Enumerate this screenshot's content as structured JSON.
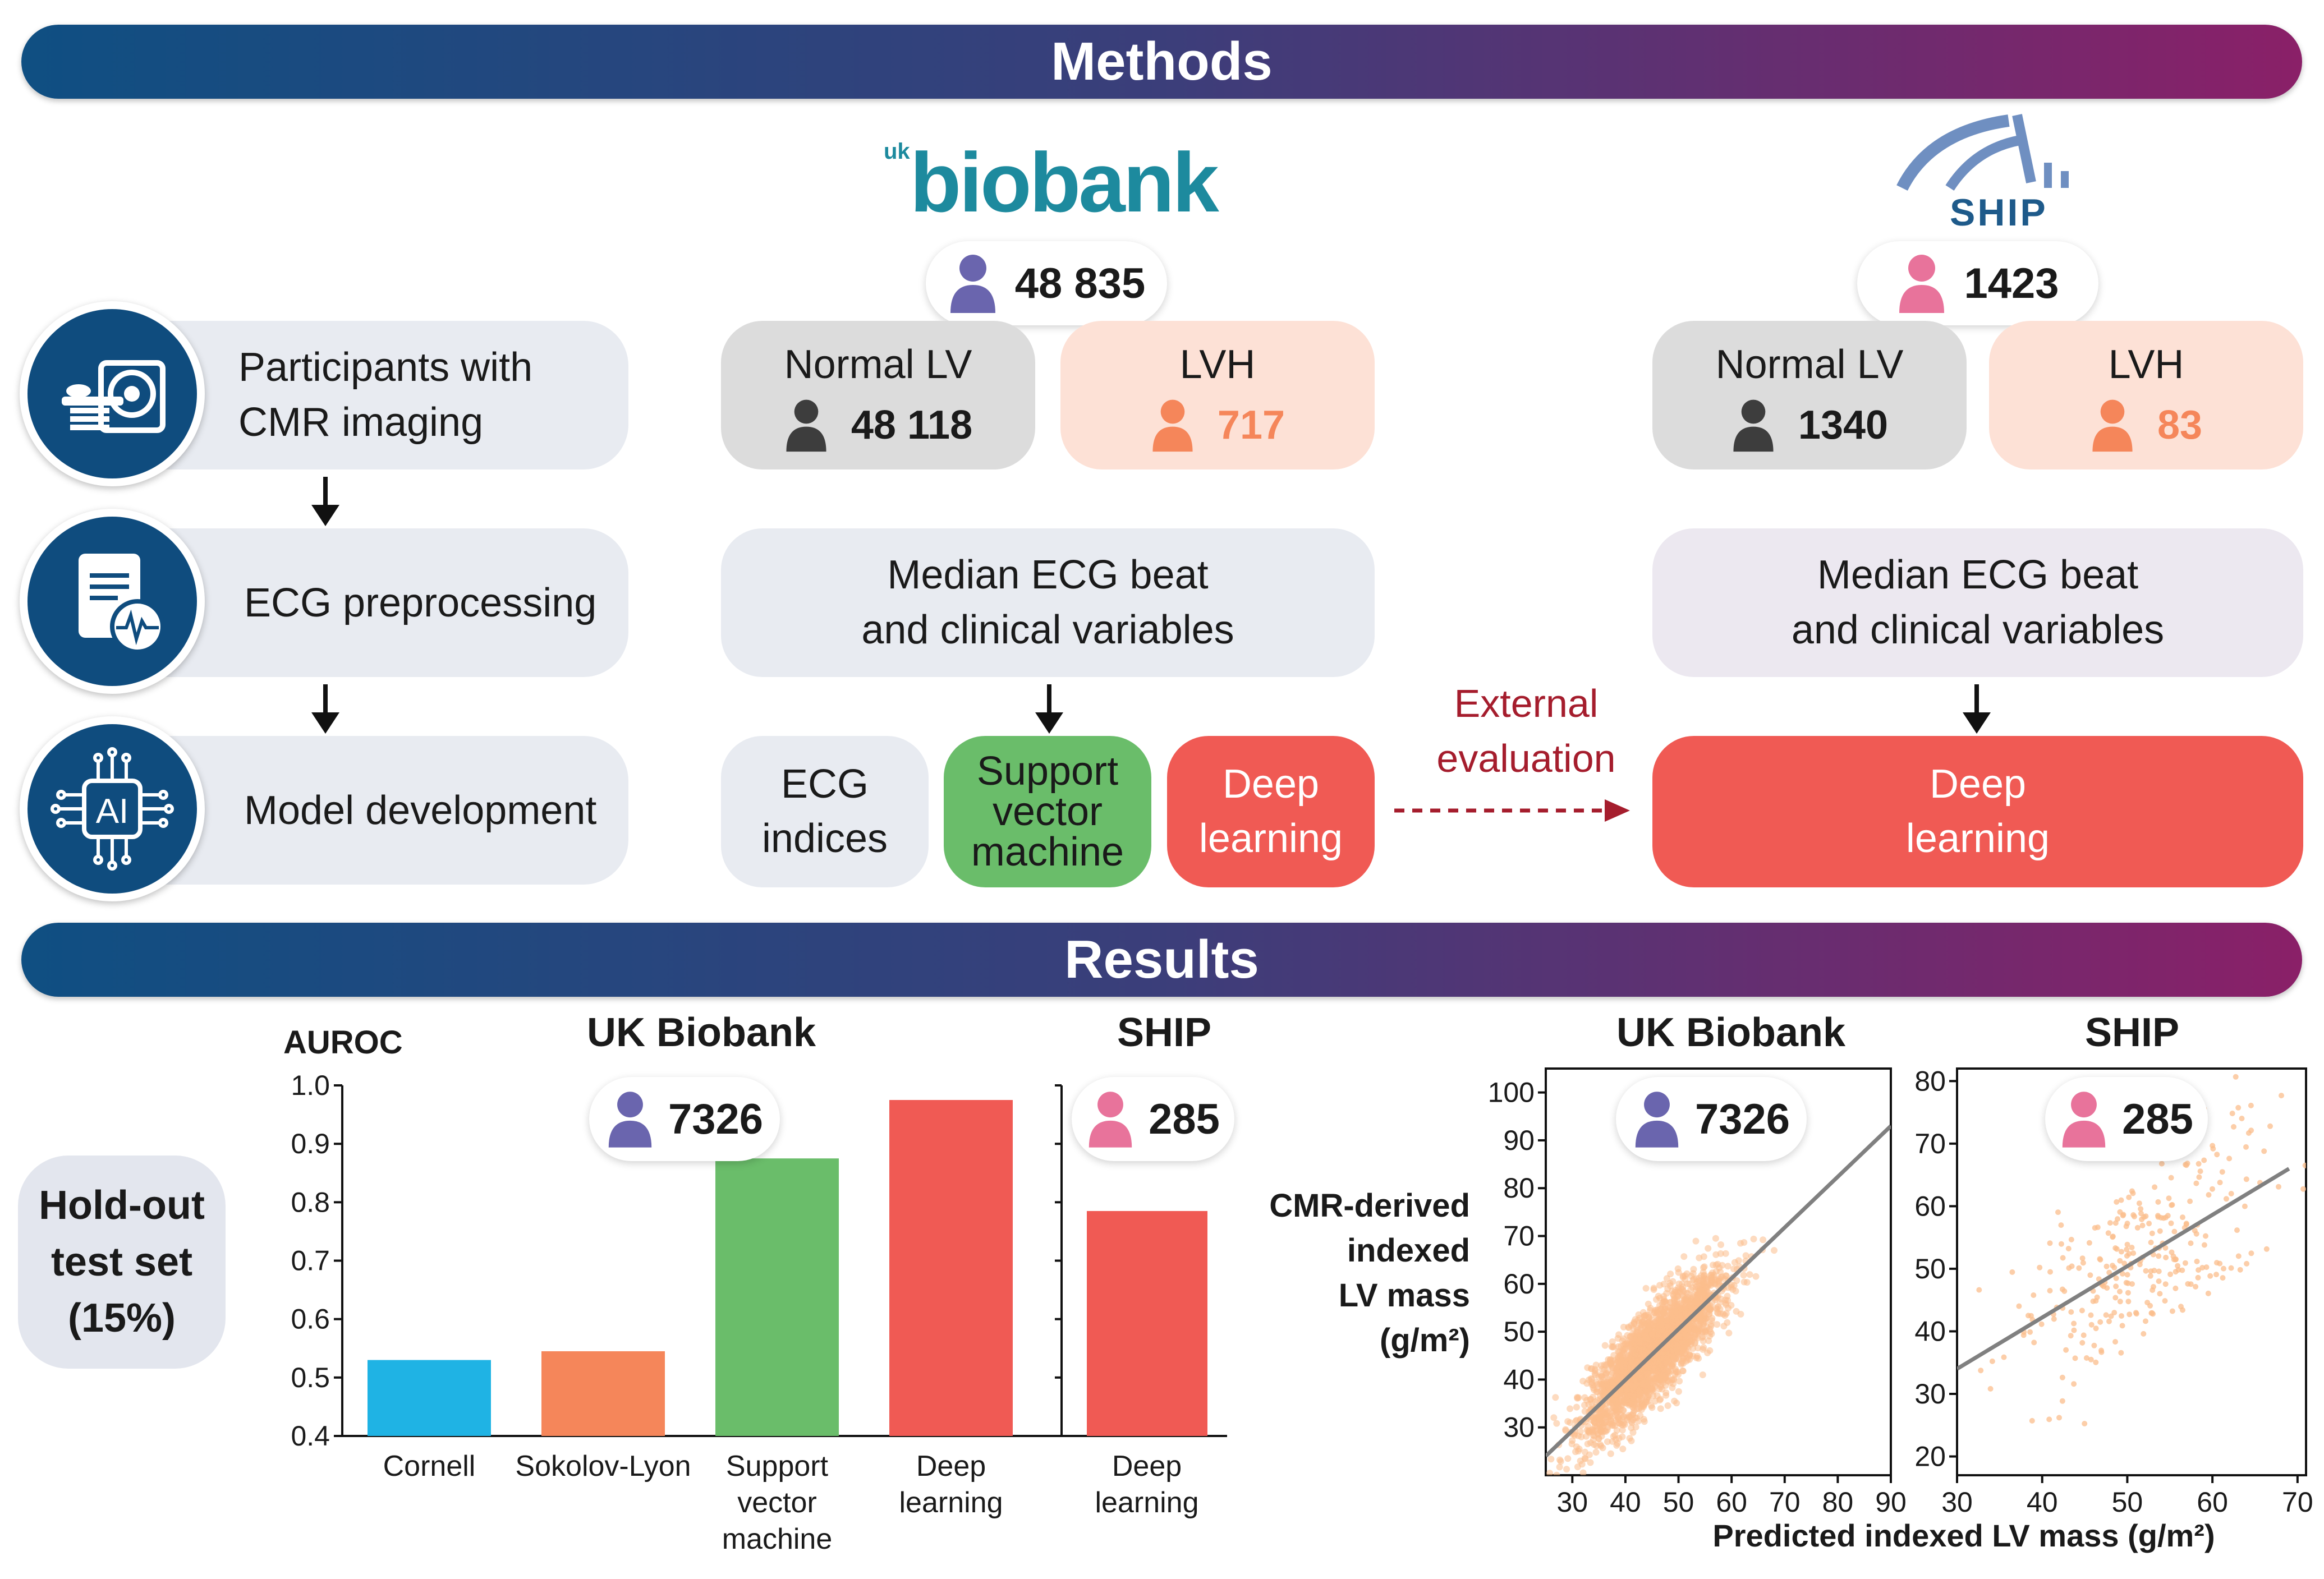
{
  "methods": {
    "title": "Methods",
    "steps": [
      {
        "label_l1": "Participants with",
        "label_l2": "CMR imaging",
        "icon": "mri-scanner-icon"
      },
      {
        "label": "ECG preprocessing",
        "icon": "ecg-document-icon"
      },
      {
        "label": "Model development",
        "icon": "ai-chip-icon"
      }
    ],
    "ukb": {
      "logo_small": "uk",
      "logo_text": "biobank",
      "count": "48 835",
      "normal_label": "Normal LV",
      "normal_count": "48 118",
      "lvh_label": "LVH",
      "lvh_count": "717",
      "input_l1": "Median ECG beat",
      "input_l2": "and clinical variables",
      "model_ecg_l1": "ECG",
      "model_ecg_l2": "indices",
      "model_svm_l1": "Support",
      "model_svm_l2": "vector",
      "model_svm_l3": "machine",
      "model_dl_l1": "Deep",
      "model_dl_l2": "learning"
    },
    "external_l1": "External",
    "external_l2": "evaluation",
    "ship": {
      "logo_text": "SHIP",
      "count": "1423",
      "normal_label": "Normal LV",
      "normal_count": "1340",
      "lvh_label": "LVH",
      "lvh_count": "83",
      "input_l1": "Median ECG beat",
      "input_l2": "and clinical variables",
      "model_dl_l1": "Deep",
      "model_dl_l2": "learning"
    }
  },
  "results": {
    "title": "Results",
    "holdout_l1": "Hold-out",
    "holdout_l2": "test set",
    "holdout_l3": "(15%)",
    "ukb_title": "UK Biobank",
    "ship_title": "SHIP",
    "ukb_n": "7326",
    "ship_n": "285",
    "scatter_ylabel_l1": "CMR-derived",
    "scatter_ylabel_l2": "indexed",
    "scatter_ylabel_l3": "LV mass",
    "scatter_ylabel_l4": "(g/m²)",
    "scatter_xlabel": "Predicted indexed LV mass (g/m²)"
  },
  "colors": {
    "cornell": "#1fb3e4",
    "sokolov": "#f5865a",
    "svm": "#6abd6a",
    "dl": "#f05a54",
    "scatter": "#fbbd8c",
    "line": "#808080",
    "person_ukb": "#6a65ae",
    "person_ship": "#e8739b",
    "person_normal": "#3d3d3d",
    "person_lvh": "#f5865a"
  },
  "chart_data": [
    {
      "type": "bar",
      "title": "UK Biobank",
      "ylabel": "AUROC",
      "categories": [
        "Cornell",
        "Sokolov-Lyon",
        "Support vector machine",
        "Deep learning"
      ],
      "category_lines": [
        [
          "Cornell"
        ],
        [
          "Sokolov-Lyon"
        ],
        [
          "Support",
          "vector",
          "machine"
        ],
        [
          "Deep",
          "learning"
        ]
      ],
      "values": [
        0.53,
        0.545,
        0.875,
        0.975
      ],
      "ylim": [
        0.4,
        1.0
      ],
      "yticks": [
        "0.4",
        "0.5",
        "0.6",
        "0.7",
        "0.8",
        "0.9",
        "1.0"
      ]
    },
    {
      "type": "bar",
      "title": "SHIP",
      "categories": [
        "Deep learning"
      ],
      "category_lines": [
        [
          "Deep",
          "learning"
        ]
      ],
      "values": [
        0.785
      ],
      "ylim": [
        0.4,
        1.0
      ]
    },
    {
      "type": "scatter",
      "title": "UK Biobank",
      "xlim": [
        25,
        90
      ],
      "ylim": [
        20,
        105
      ],
      "xticks": [
        "30",
        "40",
        "50",
        "60",
        "70",
        "80",
        "90"
      ],
      "yticks": [
        "30",
        "40",
        "50",
        "60",
        "70",
        "80",
        "90",
        "100"
      ],
      "fit": {
        "x0": 25,
        "y0": 24,
        "x1": 90,
        "y1": 93
      },
      "n": "7326"
    },
    {
      "type": "scatter",
      "title": "SHIP",
      "xlim": [
        30,
        71
      ],
      "ylim": [
        17,
        82
      ],
      "xticks": [
        "30",
        "40",
        "50",
        "60",
        "70"
      ],
      "yticks": [
        "20",
        "30",
        "40",
        "50",
        "60",
        "70",
        "80"
      ],
      "fit": {
        "x0": 30,
        "y0": 34,
        "x1": 69,
        "y1": 66
      },
      "n": "285"
    }
  ]
}
